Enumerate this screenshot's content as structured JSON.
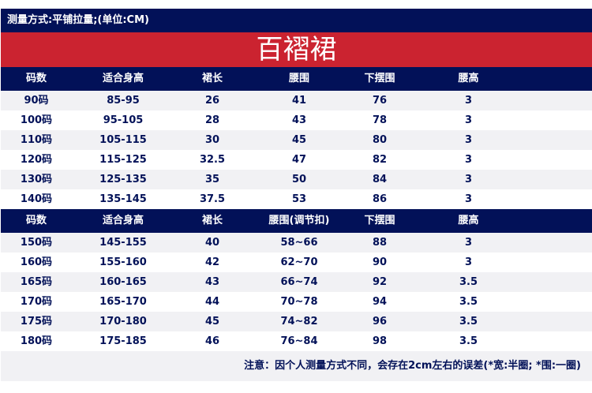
{
  "header": {
    "method": "测量方式:平铺拉量;(单位:CM)",
    "title": "百褶裙"
  },
  "colors": {
    "navy": "#021158",
    "red": "#cb2330",
    "row_gray": "#f1f1f4"
  },
  "table1": {
    "columns": [
      "码数",
      "适合身高",
      "裙长",
      "腰围",
      "下摆围",
      "腰高"
    ],
    "rows": [
      [
        "90码",
        "85-95",
        "26",
        "41",
        "76",
        "3"
      ],
      [
        "100码",
        "95-105",
        "28",
        "43",
        "78",
        "3"
      ],
      [
        "110码",
        "105-115",
        "30",
        "45",
        "80",
        "3"
      ],
      [
        "120码",
        "115-125",
        "32.5",
        "47",
        "82",
        "3"
      ],
      [
        "130码",
        "125-135",
        "35",
        "50",
        "84",
        "3"
      ],
      [
        "140码",
        "135-145",
        "37.5",
        "53",
        "86",
        "3"
      ]
    ]
  },
  "table2": {
    "columns": [
      "码数",
      "适合身高",
      "裙长",
      "腰围(调节扣)",
      "下摆围",
      "腰高"
    ],
    "rows": [
      [
        "150码",
        "145-155",
        "40",
        "58~66",
        "88",
        "3"
      ],
      [
        "160码",
        "155-160",
        "42",
        "62~70",
        "90",
        "3"
      ],
      [
        "165码",
        "160-165",
        "43",
        "66~74",
        "92",
        "3.5"
      ],
      [
        "170码",
        "165-170",
        "44",
        "70~78",
        "94",
        "3.5"
      ],
      [
        "175码",
        "170-180",
        "45",
        "74~82",
        "96",
        "3.5"
      ],
      [
        "180码",
        "175-185",
        "46",
        "76~84",
        "98",
        "3.5"
      ]
    ]
  },
  "note": "注意：因个人测量方式不同，会存在2cm左右的误差(*宽:半圈; *围:一圈)"
}
